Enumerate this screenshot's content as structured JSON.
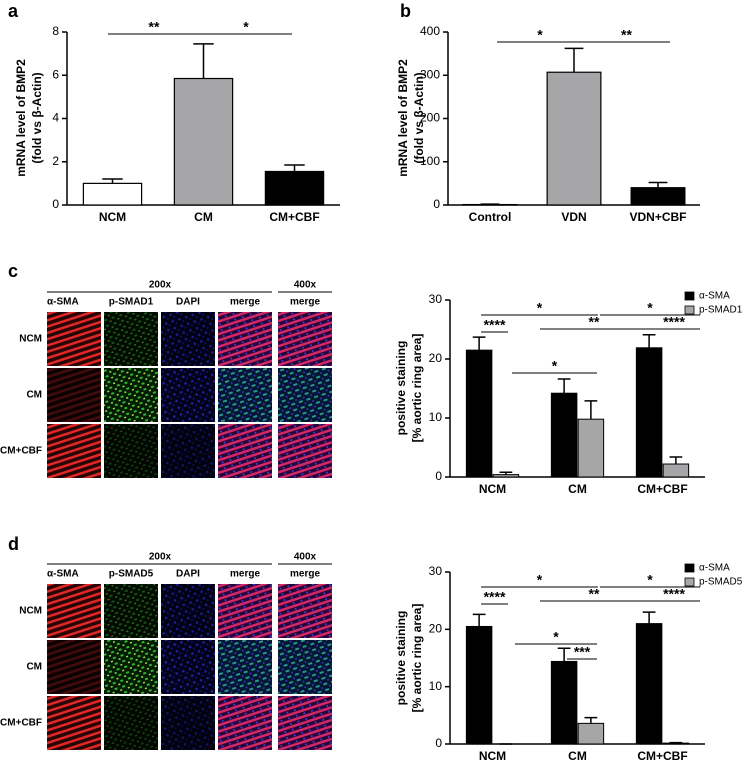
{
  "panels": [
    "a",
    "b",
    "c",
    "d"
  ],
  "chart_data": [
    {
      "type": "bar",
      "y_label": [
        "mRNA level of BMP2",
        "(fold vs β-Actin)"
      ],
      "categories": [
        "NCM",
        "CM",
        "CM+CBF"
      ],
      "values": [
        1.0,
        5.85,
        1.55
      ],
      "errors": [
        0.2,
        1.6,
        0.3
      ],
      "colors": [
        "#ffffff",
        "#a6a6a8",
        "#000000"
      ],
      "ylim": [
        0,
        8
      ],
      "yticks": [
        0,
        2,
        4,
        6,
        8
      ],
      "annotations": [
        "**",
        "*"
      ]
    },
    {
      "type": "bar",
      "y_label": [
        "mRNA level of BMP2",
        "(fold vs β-Actin)"
      ],
      "categories": [
        "Control",
        "VDN",
        "VDN+CBF"
      ],
      "values": [
        1,
        307,
        40
      ],
      "errors": [
        1,
        55,
        12
      ],
      "colors": [
        "#ffffff",
        "#a6a6a8",
        "#000000"
      ],
      "ylim": [
        0,
        400
      ],
      "yticks": [
        0,
        100,
        200,
        300,
        400
      ],
      "annotations": [
        "*",
        "**"
      ]
    },
    {
      "type": "bar",
      "y_label": [
        "positive  staining",
        "[% aortic ring area]"
      ],
      "categories": [
        "NCM",
        "CM",
        "CM+CBF"
      ],
      "series": [
        {
          "name": "α-SMA",
          "color": "#000000",
          "values": [
            21.5,
            14.2,
            21.9
          ],
          "errors": [
            2.2,
            2.4,
            2.2
          ]
        },
        {
          "name": "p-SMAD1",
          "color": "#a6a6a8",
          "values": [
            0.4,
            9.8,
            2.2
          ],
          "errors": [
            0.4,
            3.1,
            1.2
          ]
        }
      ],
      "ylim": [
        0,
        30
      ],
      "yticks": [
        0,
        10,
        20,
        30
      ],
      "legend": "upper right",
      "annotations": [
        "*",
        "****",
        "*",
        "*",
        "**",
        "****"
      ]
    },
    {
      "type": "bar",
      "y_label": [
        "positive  staining",
        "[% aortic ring area]"
      ],
      "categories": [
        "NCM",
        "CM",
        "CM+CBF"
      ],
      "series": [
        {
          "name": "α-SMA",
          "color": "#000000",
          "values": [
            20.5,
            14.4,
            21.0
          ],
          "errors": [
            2.1,
            2.3,
            2.0
          ]
        },
        {
          "name": "p-SMAD5",
          "color": "#a6a6a8",
          "values": [
            0,
            3.6,
            0.15
          ],
          "errors": [
            0,
            1.0,
            0.1
          ]
        }
      ],
      "ylim": [
        0,
        30
      ],
      "yticks": [
        0,
        10,
        20,
        30
      ],
      "legend": "upper right",
      "annotations": [
        "*",
        "****",
        "*",
        "***",
        "*",
        "**",
        "****"
      ]
    }
  ],
  "image_panels": [
    {
      "magnification": [
        "200x",
        "400x"
      ],
      "columns": [
        "α-SMA",
        "p-SMAD1",
        "DAPI",
        "merge",
        "merge"
      ],
      "rows": [
        "NCM",
        "CM",
        "CM+CBF"
      ]
    },
    {
      "magnification": [
        "200x",
        "400x"
      ],
      "columns": [
        "α-SMA",
        "p-SMAD5",
        "DAPI",
        "merge",
        "merge"
      ],
      "rows": [
        "NCM",
        "CM",
        "CM+CBF"
      ]
    }
  ]
}
